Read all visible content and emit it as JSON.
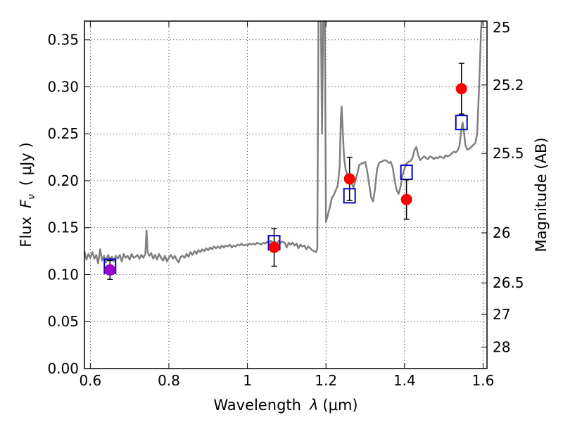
{
  "chart_data": {
    "type": "scatter",
    "xlabel": "Wavelength",
    "xlabel_symbol": "λ",
    "xlabel_unit": "(μm)",
    "ylabel": "Flux",
    "ylabel_symbol": "F",
    "ylabel_symbol_sub": "ν",
    "ylabel_unit": "( μJy )",
    "y2label": "Magnitude (AB)",
    "xlim": [
      0.585,
      1.61
    ],
    "ylim": [
      0.0,
      0.37
    ],
    "grid": true,
    "x_ticks": [
      0.6,
      0.8,
      1.0,
      1.2,
      1.4,
      1.6
    ],
    "x_tick_labels": [
      "0.6",
      "0.8",
      "1",
      "1.2",
      "1.4",
      "1.6"
    ],
    "y_ticks": [
      0.0,
      0.05,
      0.1,
      0.15,
      0.2,
      0.25,
      0.3,
      0.35
    ],
    "y_tick_labels": [
      "0.00",
      "0.05",
      "0.10",
      "0.15",
      "0.20",
      "0.25",
      "0.30",
      "0.35"
    ],
    "y2_ticks": [
      {
        "mag": 25,
        "label": "25"
      },
      {
        "mag": 25.2,
        "label": "25.2"
      },
      {
        "mag": 25.5,
        "label": "25.5"
      },
      {
        "mag": 26,
        "label": "26"
      },
      {
        "mag": 26.5,
        "label": "26.5"
      },
      {
        "mag": 27,
        "label": "27"
      },
      {
        "mag": 28,
        "label": "28"
      }
    ],
    "series": [
      {
        "kind": "spectrum_line",
        "color": "#808080",
        "points": [
          [
            0.585,
            0.125
          ],
          [
            0.59,
            0.116
          ],
          [
            0.595,
            0.122
          ],
          [
            0.6,
            0.118
          ],
          [
            0.605,
            0.124
          ],
          [
            0.61,
            0.117
          ],
          [
            0.615,
            0.121
          ],
          [
            0.62,
            0.112
          ],
          [
            0.625,
            0.127
          ],
          [
            0.63,
            0.115
          ],
          [
            0.635,
            0.12
          ],
          [
            0.64,
            0.113
          ],
          [
            0.645,
            0.121
          ],
          [
            0.65,
            0.116
          ],
          [
            0.655,
            0.119
          ],
          [
            0.66,
            0.114
          ],
          [
            0.665,
            0.12
          ],
          [
            0.67,
            0.117
          ],
          [
            0.675,
            0.121
          ],
          [
            0.68,
            0.114
          ],
          [
            0.685,
            0.122
          ],
          [
            0.69,
            0.118
          ],
          [
            0.695,
            0.12
          ],
          [
            0.7,
            0.116
          ],
          [
            0.705,
            0.122
          ],
          [
            0.71,
            0.118
          ],
          [
            0.715,
            0.119
          ],
          [
            0.72,
            0.121
          ],
          [
            0.725,
            0.117
          ],
          [
            0.73,
            0.121
          ],
          [
            0.735,
            0.118
          ],
          [
            0.74,
            0.122
          ],
          [
            0.743,
            0.147
          ],
          [
            0.746,
            0.124
          ],
          [
            0.75,
            0.12
          ],
          [
            0.755,
            0.123
          ],
          [
            0.76,
            0.117
          ],
          [
            0.765,
            0.121
          ],
          [
            0.77,
            0.116
          ],
          [
            0.775,
            0.122
          ],
          [
            0.78,
            0.118
          ],
          [
            0.785,
            0.115
          ],
          [
            0.79,
            0.12
          ],
          [
            0.795,
            0.114
          ],
          [
            0.8,
            0.118
          ],
          [
            0.805,
            0.121
          ],
          [
            0.81,
            0.117
          ],
          [
            0.815,
            0.12
          ],
          [
            0.82,
            0.116
          ],
          [
            0.825,
            0.113
          ],
          [
            0.83,
            0.119
          ],
          [
            0.835,
            0.12
          ],
          [
            0.84,
            0.118
          ],
          [
            0.845,
            0.122
          ],
          [
            0.85,
            0.119
          ],
          [
            0.855,
            0.124
          ],
          [
            0.86,
            0.121
          ],
          [
            0.865,
            0.125
          ],
          [
            0.87,
            0.122
          ],
          [
            0.875,
            0.126
          ],
          [
            0.88,
            0.124
          ],
          [
            0.885,
            0.127
          ],
          [
            0.89,
            0.125
          ],
          [
            0.895,
            0.128
          ],
          [
            0.9,
            0.126
          ],
          [
            0.905,
            0.129
          ],
          [
            0.91,
            0.127
          ],
          [
            0.915,
            0.13
          ],
          [
            0.92,
            0.128
          ],
          [
            0.925,
            0.13
          ],
          [
            0.93,
            0.128
          ],
          [
            0.935,
            0.131
          ],
          [
            0.94,
            0.129
          ],
          [
            0.945,
            0.131
          ],
          [
            0.95,
            0.13
          ],
          [
            0.955,
            0.132
          ],
          [
            0.96,
            0.129
          ],
          [
            0.965,
            0.131
          ],
          [
            0.97,
            0.13
          ],
          [
            0.975,
            0.132
          ],
          [
            0.98,
            0.131
          ],
          [
            0.985,
            0.133
          ],
          [
            0.99,
            0.131
          ],
          [
            0.995,
            0.132
          ],
          [
            1.0,
            0.131
          ],
          [
            1.005,
            0.133
          ],
          [
            1.01,
            0.132
          ],
          [
            1.015,
            0.133
          ],
          [
            1.02,
            0.132
          ],
          [
            1.025,
            0.134
          ],
          [
            1.03,
            0.133
          ],
          [
            1.035,
            0.132
          ],
          [
            1.04,
            0.134
          ],
          [
            1.045,
            0.133
          ],
          [
            1.05,
            0.135
          ],
          [
            1.055,
            0.134
          ],
          [
            1.06,
            0.136
          ],
          [
            1.065,
            0.134
          ],
          [
            1.07,
            0.135
          ],
          [
            1.075,
            0.133
          ],
          [
            1.08,
            0.136
          ],
          [
            1.085,
            0.134
          ],
          [
            1.09,
            0.135
          ],
          [
            1.095,
            0.134
          ],
          [
            1.1,
            0.129
          ],
          [
            1.105,
            0.134
          ],
          [
            1.11,
            0.132
          ],
          [
            1.115,
            0.134
          ],
          [
            1.12,
            0.131
          ],
          [
            1.125,
            0.133
          ],
          [
            1.13,
            0.128
          ],
          [
            1.135,
            0.132
          ],
          [
            1.14,
            0.13
          ],
          [
            1.145,
            0.131
          ],
          [
            1.15,
            0.127
          ],
          [
            1.155,
            0.13
          ],
          [
            1.16,
            0.128
          ],
          [
            1.165,
            0.126
          ],
          [
            1.17,
            0.125
          ],
          [
            1.175,
            0.124
          ],
          [
            1.178,
            0.128
          ],
          [
            1.181,
            0.38
          ],
          [
            1.187,
            0.38
          ],
          [
            1.19,
            0.25
          ],
          [
            1.193,
            0.38
          ],
          [
            1.197,
            0.38
          ],
          [
            1.2,
            0.156
          ],
          [
            1.205,
            0.164
          ],
          [
            1.21,
            0.172
          ],
          [
            1.215,
            0.182
          ],
          [
            1.22,
            0.185
          ],
          [
            1.225,
            0.19
          ],
          [
            1.23,
            0.195
          ],
          [
            1.235,
            0.215
          ],
          [
            1.238,
            0.268
          ],
          [
            1.24,
            0.279
          ],
          [
            1.243,
            0.25
          ],
          [
            1.246,
            0.225
          ],
          [
            1.25,
            0.212
          ],
          [
            1.255,
            0.206
          ],
          [
            1.26,
            0.2
          ],
          [
            1.265,
            0.197
          ],
          [
            1.27,
            0.193
          ],
          [
            1.275,
            0.2
          ],
          [
            1.28,
            0.208
          ],
          [
            1.285,
            0.217
          ],
          [
            1.29,
            0.218
          ],
          [
            1.295,
            0.219
          ],
          [
            1.3,
            0.22
          ],
          [
            1.305,
            0.21
          ],
          [
            1.31,
            0.196
          ],
          [
            1.315,
            0.182
          ],
          [
            1.32,
            0.178
          ],
          [
            1.325,
            0.192
          ],
          [
            1.33,
            0.212
          ],
          [
            1.335,
            0.219
          ],
          [
            1.34,
            0.22
          ],
          [
            1.345,
            0.221
          ],
          [
            1.35,
            0.222
          ],
          [
            1.355,
            0.221
          ],
          [
            1.36,
            0.219
          ],
          [
            1.365,
            0.22
          ],
          [
            1.37,
            0.214
          ],
          [
            1.375,
            0.2
          ],
          [
            1.38,
            0.19
          ],
          [
            1.385,
            0.186
          ],
          [
            1.39,
            0.194
          ],
          [
            1.395,
            0.206
          ],
          [
            1.4,
            0.213
          ],
          [
            1.405,
            0.218
          ],
          [
            1.41,
            0.22
          ],
          [
            1.415,
            0.221
          ],
          [
            1.42,
            0.224
          ],
          [
            1.425,
            0.232
          ],
          [
            1.43,
            0.236
          ],
          [
            1.435,
            0.227
          ],
          [
            1.44,
            0.222
          ],
          [
            1.445,
            0.224
          ],
          [
            1.45,
            0.226
          ],
          [
            1.455,
            0.224
          ],
          [
            1.46,
            0.223
          ],
          [
            1.465,
            0.226
          ],
          [
            1.47,
            0.225
          ],
          [
            1.475,
            0.223
          ],
          [
            1.48,
            0.225
          ],
          [
            1.485,
            0.224
          ],
          [
            1.49,
            0.226
          ],
          [
            1.495,
            0.225
          ],
          [
            1.5,
            0.224
          ],
          [
            1.505,
            0.227
          ],
          [
            1.51,
            0.226
          ],
          [
            1.515,
            0.227
          ],
          [
            1.52,
            0.229
          ],
          [
            1.525,
            0.231
          ],
          [
            1.53,
            0.23
          ],
          [
            1.535,
            0.232
          ],
          [
            1.54,
            0.237
          ],
          [
            1.545,
            0.255
          ],
          [
            1.548,
            0.262
          ],
          [
            1.552,
            0.25
          ],
          [
            1.555,
            0.238
          ],
          [
            1.56,
            0.233
          ],
          [
            1.565,
            0.234
          ],
          [
            1.57,
            0.236
          ],
          [
            1.575,
            0.238
          ],
          [
            1.58,
            0.24
          ],
          [
            1.585,
            0.25
          ],
          [
            1.59,
            0.3
          ],
          [
            1.595,
            0.36
          ],
          [
            1.598,
            0.38
          ]
        ]
      },
      {
        "kind": "open_squares",
        "color": "#0000cc",
        "points": [
          [
            0.65,
            0.109
          ],
          [
            1.068,
            0.134
          ],
          [
            1.26,
            0.184
          ],
          [
            1.405,
            0.209
          ],
          [
            1.545,
            0.262
          ]
        ]
      },
      {
        "kind": "filled_circles_with_errorbars",
        "color": "#ff0000",
        "points": [
          {
            "x": 1.068,
            "y": 0.129,
            "err": 0.02
          },
          {
            "x": 1.26,
            "y": 0.202,
            "err": 0.023
          },
          {
            "x": 1.405,
            "y": 0.18,
            "err": 0.021
          },
          {
            "x": 1.545,
            "y": 0.298,
            "err": 0.027
          }
        ]
      },
      {
        "kind": "filled_circles_with_errorbars",
        "color": "#9900cc",
        "points": [
          {
            "x": 0.65,
            "y": 0.105,
            "err": 0.01
          }
        ]
      }
    ]
  }
}
